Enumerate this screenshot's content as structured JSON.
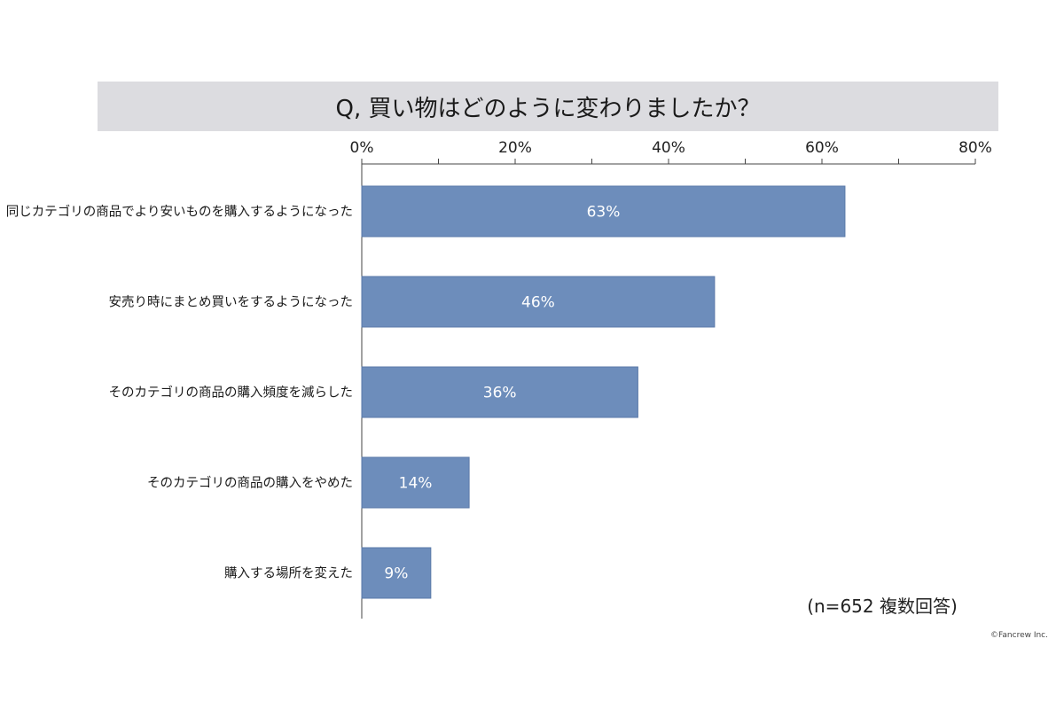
{
  "title": "Q, 買い物はどのように変わりましたか？",
  "footnote": "(n=652 複数回答)",
  "credit": "©Fancrew Inc.",
  "colors": {
    "bar": "#6d8dbb",
    "title_band": "#dcdce0",
    "bar_label": "#ffffff"
  },
  "chart_data": {
    "type": "bar",
    "orientation": "horizontal",
    "title": "Q, 買い物はどのように変わりましたか？",
    "categories": [
      "同じカテゴリの商品でより安いものを購入するようになった",
      "安売り時にまとめ買いをするようになった",
      "そのカテゴリの商品の購入頻度を減らした",
      "そのカテゴリの商品の購入をやめた",
      "購入する場所を変えた"
    ],
    "values": [
      63,
      46,
      36,
      14,
      9
    ],
    "data_labels": [
      "63%",
      "46%",
      "36%",
      "14%",
      "9%"
    ],
    "xlim": [
      0,
      80
    ],
    "ticks": [
      0,
      20,
      40,
      60,
      80
    ],
    "tick_labels": [
      "0%",
      "20%",
      "40%",
      "60%",
      "80%"
    ],
    "minor_ticks": [
      10,
      30,
      50,
      70
    ],
    "axis_position": "top",
    "grid": false,
    "legend": false
  }
}
